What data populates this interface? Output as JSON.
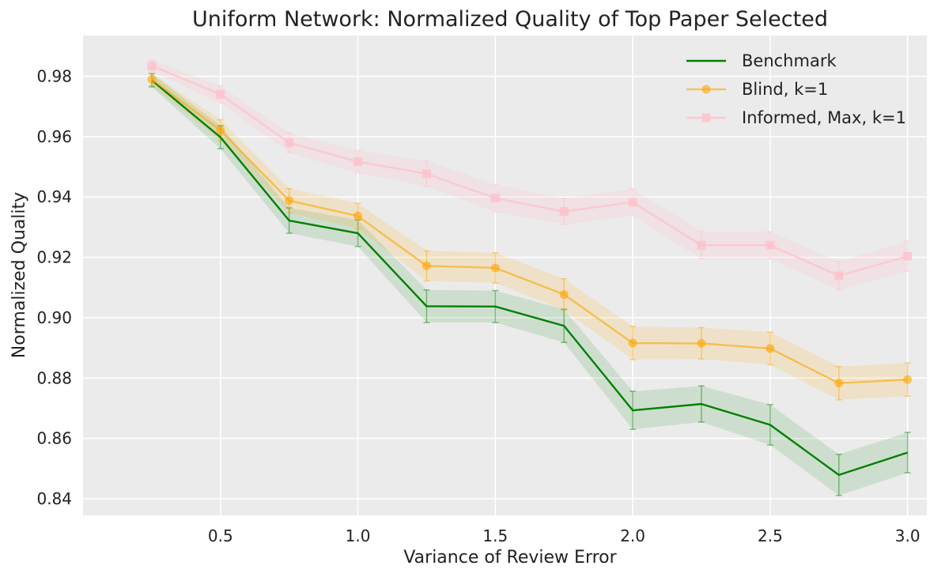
{
  "chart_data": {
    "type": "line",
    "title": "Uniform Network: Normalized Quality of Top Paper Selected",
    "xlabel": "Variance of Review Error",
    "ylabel": "Normalized Quality",
    "xlim": [
      0.0,
      3.07
    ],
    "ylim": [
      0.8345,
      0.9935
    ],
    "x_ticks": [
      0.5,
      1.0,
      1.5,
      2.0,
      2.5,
      3.0
    ],
    "x_tick_labels": [
      "0.5",
      "1.0",
      "1.5",
      "2.0",
      "2.5",
      "3.0"
    ],
    "y_ticks": [
      0.84,
      0.86,
      0.88,
      0.9,
      0.92,
      0.94,
      0.96,
      0.98
    ],
    "y_tick_labels": [
      "0.84",
      "0.86",
      "0.88",
      "0.90",
      "0.92",
      "0.94",
      "0.96",
      "0.98"
    ],
    "grid": true,
    "legend_position": "top-right",
    "x": [
      0.25,
      0.5,
      0.75,
      1.0,
      1.25,
      1.5,
      1.75,
      2.0,
      2.25,
      2.5,
      2.75,
      3.0
    ],
    "series": [
      {
        "name": "Benchmark",
        "color": "#008000",
        "marker": "none",
        "values": [
          0.9787,
          0.9598,
          0.9322,
          0.928,
          0.9038,
          0.9037,
          0.8973,
          0.8693,
          0.8714,
          0.8645,
          0.8479,
          0.8553
        ],
        "error": [
          0.0022,
          0.0038,
          0.0042,
          0.0044,
          0.0054,
          0.0053,
          0.0055,
          0.0063,
          0.006,
          0.0067,
          0.0068,
          0.0067
        ]
      },
      {
        "name": "Blind, k=1",
        "color": "#FFA500",
        "marker": "circle",
        "values": [
          0.979,
          0.9621,
          0.9388,
          0.9337,
          0.9172,
          0.9165,
          0.9077,
          0.8916,
          0.8915,
          0.8898,
          0.8783,
          0.8795
        ],
        "error": [
          0.002,
          0.0035,
          0.004,
          0.0042,
          0.005,
          0.005,
          0.0052,
          0.0055,
          0.0052,
          0.0054,
          0.0055,
          0.0055
        ]
      },
      {
        "name": "Informed, Max, k=1",
        "color": "#FFC0CB",
        "marker": "square",
        "values": [
          0.9835,
          0.974,
          0.958,
          0.9517,
          0.9477,
          0.9396,
          0.9352,
          0.9383,
          0.924,
          0.924,
          0.9139,
          0.9204
        ],
        "error": [
          0.0018,
          0.0028,
          0.0033,
          0.0037,
          0.0042,
          0.0045,
          0.0043,
          0.0045,
          0.0045,
          0.0045,
          0.0047,
          0.005
        ]
      }
    ]
  }
}
